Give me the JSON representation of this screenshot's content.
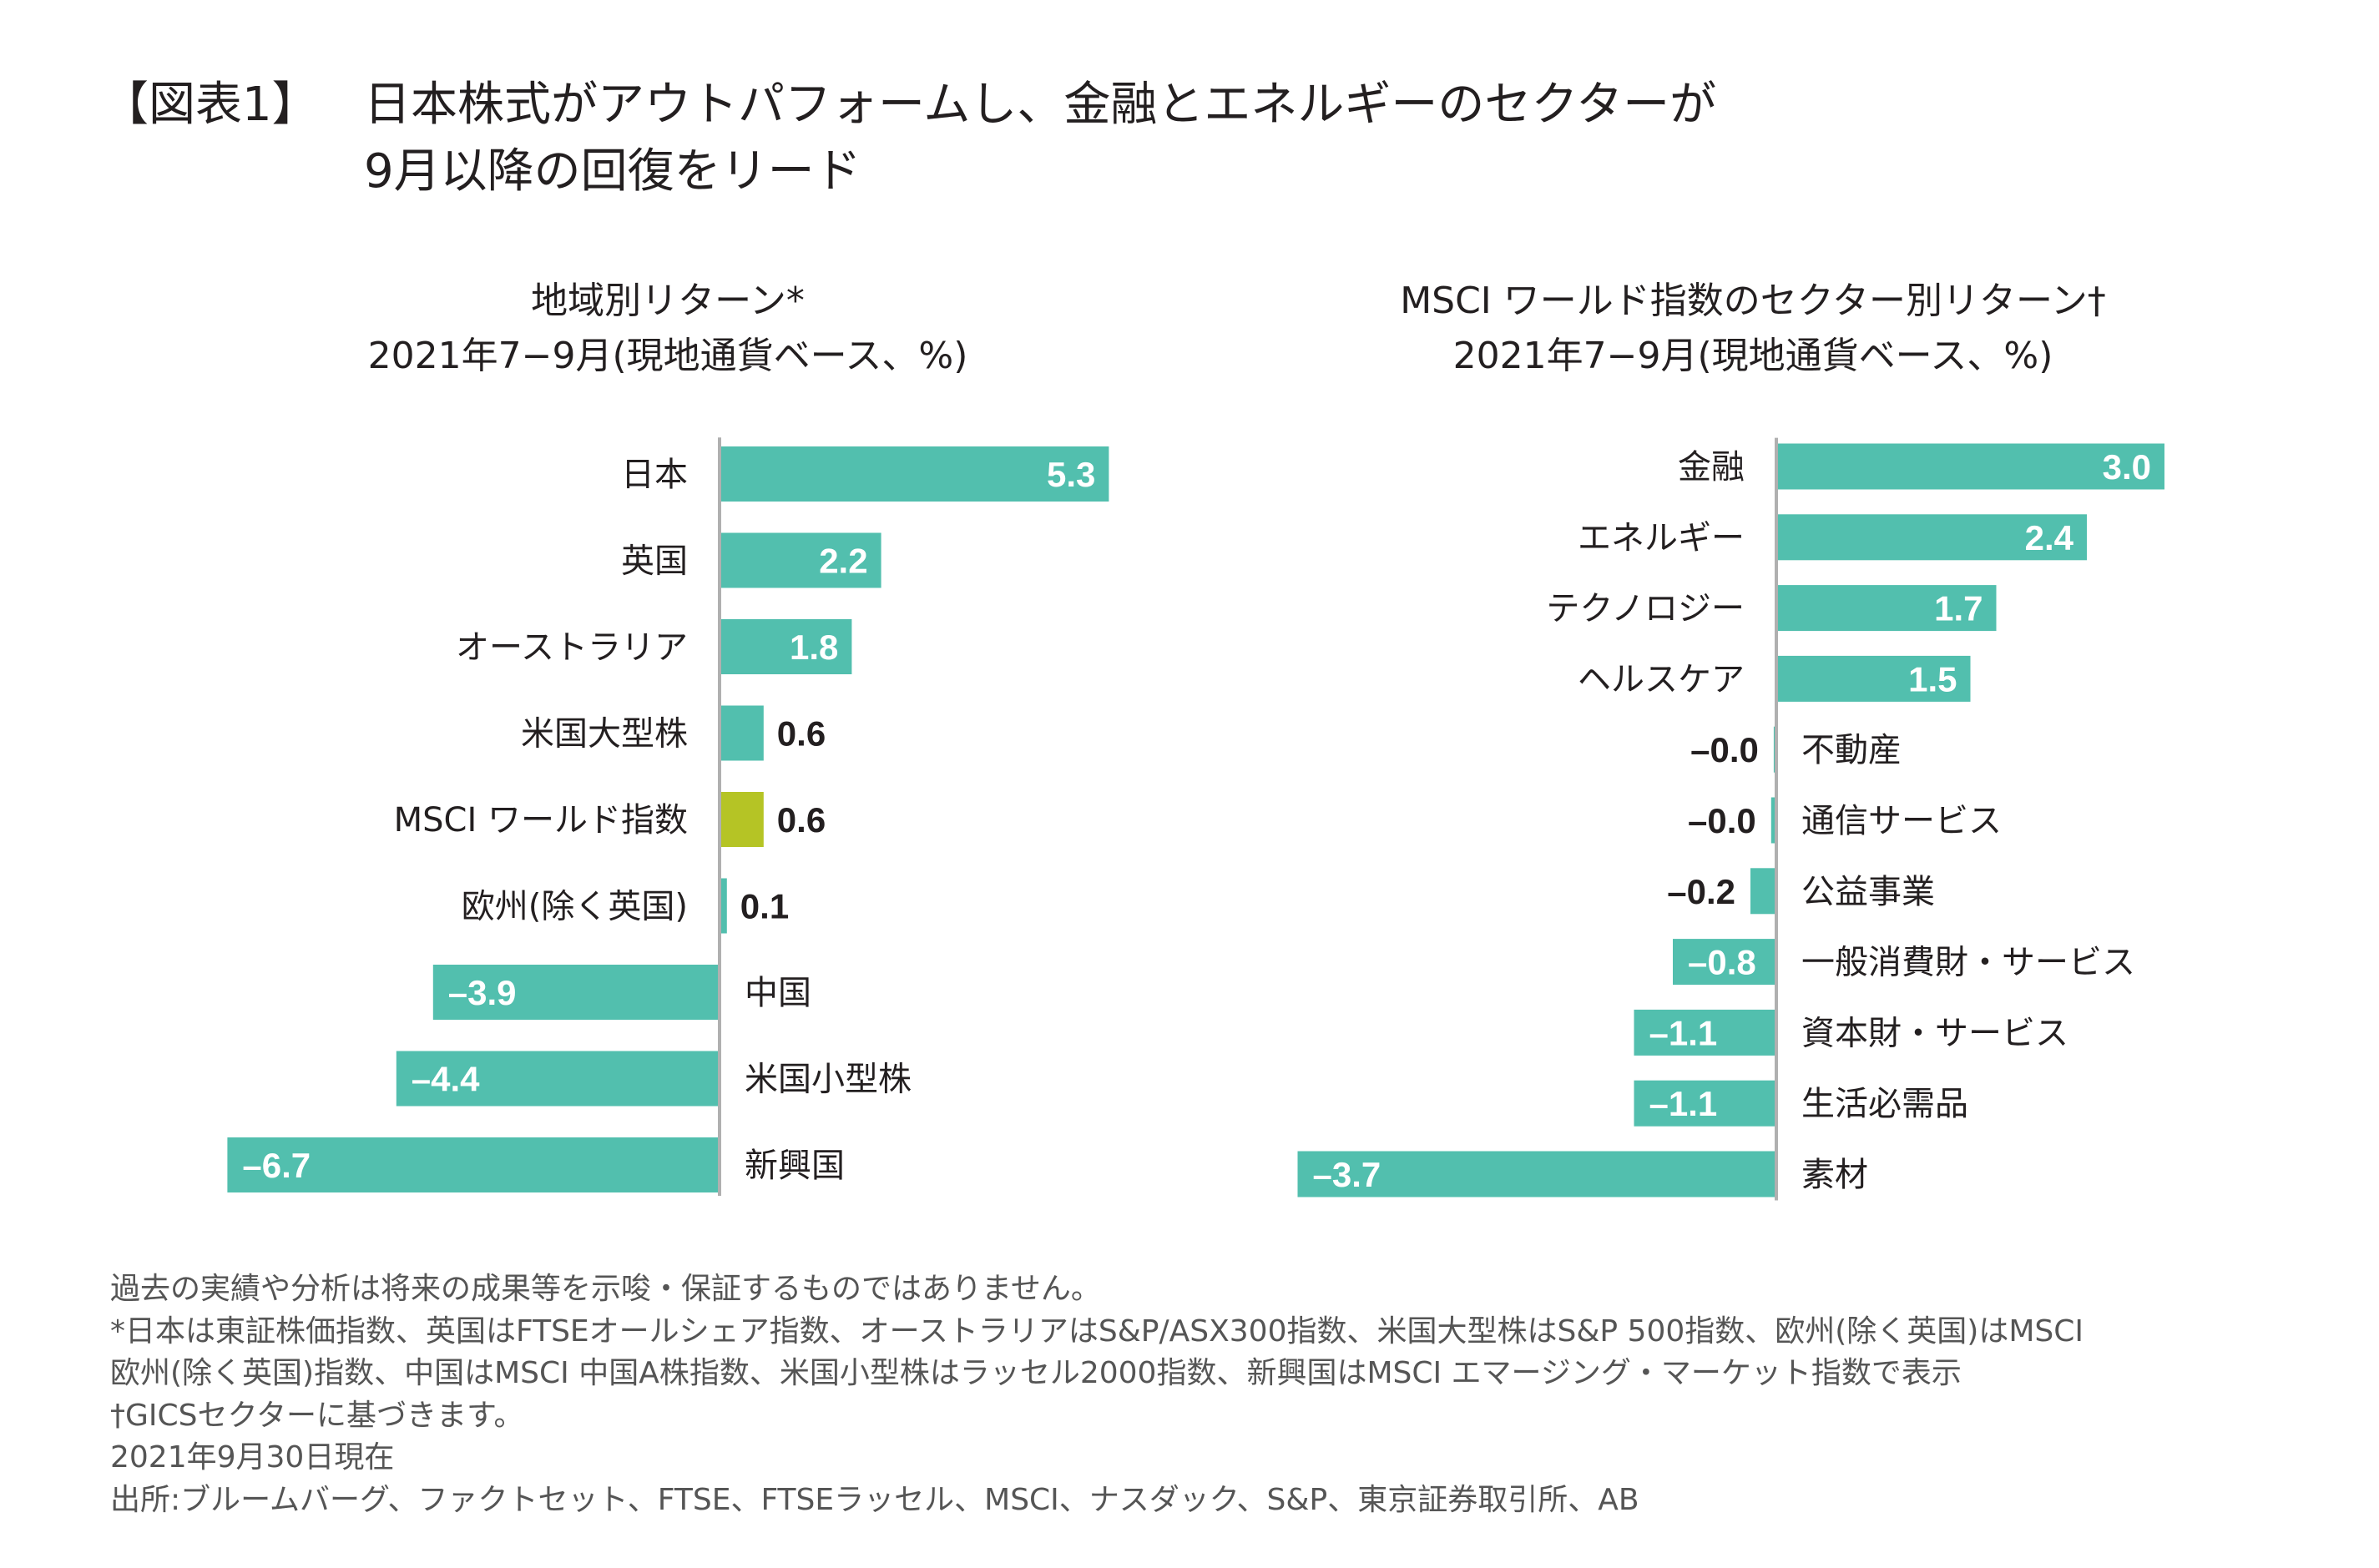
{
  "header": {
    "prefix": "【図表1】",
    "line1": "日本株式がアウトパフォームし、金融とエネルギーのセクターが",
    "line2": "9月以降の回復をリード"
  },
  "colors": {
    "bar": "#52bfae",
    "highlight": "#b5c425",
    "axis": "#b0b0b0",
    "inside_label": "#ffffff",
    "outside_label": "#231f20"
  },
  "chart_data": [
    {
      "type": "bar",
      "orientation": "horizontal",
      "title": "地域別リターン*",
      "subtitle": "2021年7−9月(現地通貨ベース、%)",
      "categories": [
        "日本",
        "英国",
        "オーストラリア",
        "米国大型株",
        "MSCI ワールド指数",
        "欧州(除く英国)",
        "中国",
        "米国小型株",
        "新興国"
      ],
      "values": [
        5.3,
        2.2,
        1.8,
        0.6,
        0.6,
        0.1,
        -3.9,
        -4.4,
        -6.7
      ],
      "labels": [
        "5.3",
        "2.2",
        "1.8",
        "0.6",
        "0.6",
        "0.1",
        "–3.9",
        "–4.4",
        "–6.7"
      ],
      "highlight": [
        4
      ]
    },
    {
      "type": "bar",
      "orientation": "horizontal",
      "title": "MSCI ワールド指数のセクター別リターン†",
      "subtitle": "2021年7−9月(現地通貨ベース、%)",
      "categories": [
        "金融",
        "エネルギー",
        "テクノロジー",
        "ヘルスケア",
        "不動産",
        "通信サービス",
        "公益事業",
        "一般消費財・サービス",
        "資本財・サービス",
        "生活必需品",
        "素材"
      ],
      "values": [
        3.0,
        2.4,
        1.7,
        1.5,
        -0.02,
        -0.04,
        -0.2,
        -0.8,
        -1.1,
        -1.1,
        -3.7
      ],
      "labels": [
        "3.0",
        "2.4",
        "1.7",
        "1.5",
        "–0.0",
        "–0.0",
        "–0.2",
        "–0.8",
        "–1.1",
        "–1.1",
        "–3.7"
      ],
      "highlight": []
    }
  ],
  "footnotes": [
    "過去の実績や分析は将来の成果等を示唆・保証するものではありません。",
    "*日本は東証株価指数、英国はFTSEオールシェア指数、オーストラリアはS&P/ASX300指数、米国大型株はS&P 500指数、欧州(除く英国)はMSCI",
    "欧州(除く英国)指数、中国はMSCI 中国A株指数、米国小型株はラッセル2000指数、新興国はMSCI エマージング・マーケット指数で表示",
    "†GICSセクターに基づきます。",
    "2021年9月30日現在",
    "出所:ブルームバーグ、ファクトセット、FTSE、FTSEラッセル、MSCI、ナスダック、S&P、東京証券取引所、AB"
  ]
}
